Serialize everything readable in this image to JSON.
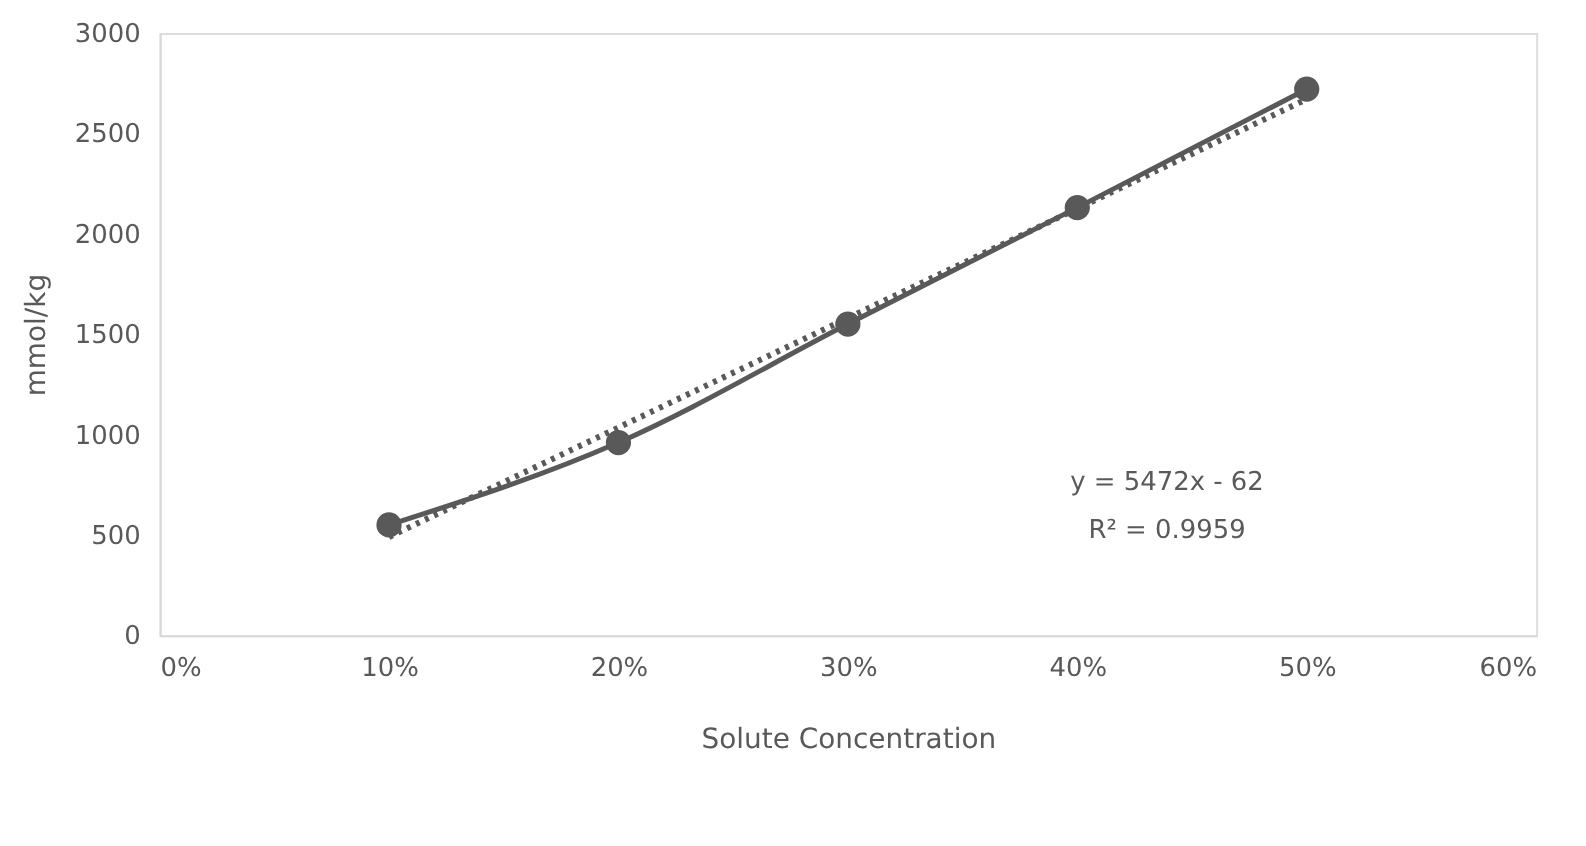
{
  "chart_data": {
    "type": "line",
    "xlabel": "Solute Concentration",
    "ylabel": "mmol/kg",
    "x": [
      0.1,
      0.2,
      0.3,
      0.4,
      0.5
    ],
    "series": [
      {
        "color": "#595959",
        "values": [
          550,
          960,
          1550,
          2130,
          2720
        ],
        "marker": "circle",
        "line_style": "solid"
      },
      {
        "color": "#595959",
        "type": "line",
        "x": [
          0.1,
          0.5
        ],
        "values": [
          490,
          2670
        ],
        "marker": "none",
        "line_style": "dotted"
      }
    ],
    "xlim": [
      0,
      0.6
    ],
    "xticks": [
      {
        "value": 0,
        "label": "0%"
      },
      {
        "value": 0.1,
        "label": "10%"
      },
      {
        "value": 0.2,
        "label": "20%"
      },
      {
        "value": 0.3,
        "label": "30%"
      },
      {
        "value": 0.4,
        "label": "40%"
      },
      {
        "value": 0.5,
        "label": "50%"
      },
      {
        "value": 0.6,
        "label": "60%"
      }
    ],
    "ylim": [
      0,
      3000
    ],
    "yticks": [
      0,
      500,
      1000,
      1500,
      2000,
      2500,
      3000
    ],
    "annotations": [
      "y = 5472x - 62",
      "R² = 0.9959"
    ],
    "grid": false
  }
}
